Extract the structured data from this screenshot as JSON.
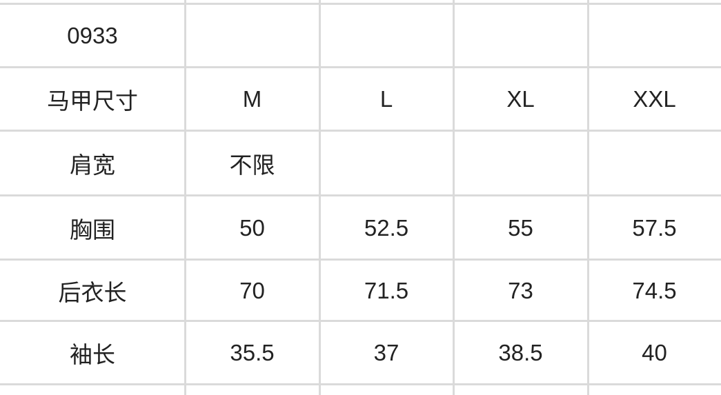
{
  "table": {
    "rows": [
      [
        "0933",
        "",
        "",
        "",
        ""
      ],
      [
        "马甲尺寸",
        "M",
        "L",
        "XL",
        "XXL"
      ],
      [
        "肩宽",
        "不限",
        "",
        "",
        ""
      ],
      [
        "胸围",
        "50",
        "52.5",
        "55",
        "57.5"
      ],
      [
        "后衣长",
        "70",
        "71.5",
        "73",
        "74.5"
      ],
      [
        "袖长",
        "35.5",
        "37",
        "38.5",
        "40"
      ],
      [
        "",
        "",
        "",
        "",
        ""
      ]
    ]
  },
  "colors": {
    "grid": "#dadada",
    "text": "#222222"
  }
}
